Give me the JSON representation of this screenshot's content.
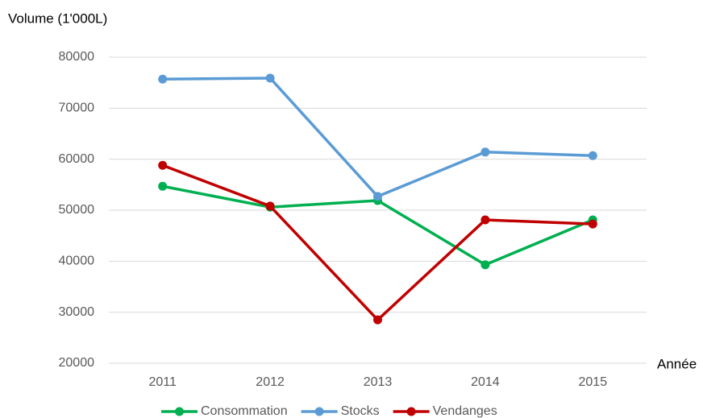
{
  "chart_data": {
    "type": "line",
    "y_label": "Volume (1'000L)",
    "x_label": "Année",
    "categories": [
      "2011",
      "2012",
      "2013",
      "2014",
      "2015"
    ],
    "series": [
      {
        "name": "Consommation",
        "color": "#00b050",
        "values": [
          54700,
          50600,
          51900,
          39300,
          48100
        ]
      },
      {
        "name": "Stocks",
        "color": "#5b9bd5",
        "values": [
          75700,
          75900,
          52700,
          61400,
          60700
        ]
      },
      {
        "name": "Vendanges",
        "color": "#c00000",
        "values": [
          58800,
          50800,
          28500,
          48100,
          47300
        ]
      }
    ],
    "ylim": [
      20000,
      80000
    ],
    "yticks": [
      20000,
      30000,
      40000,
      50000,
      60000,
      70000,
      80000
    ],
    "grid": true,
    "legend": "bottom"
  }
}
